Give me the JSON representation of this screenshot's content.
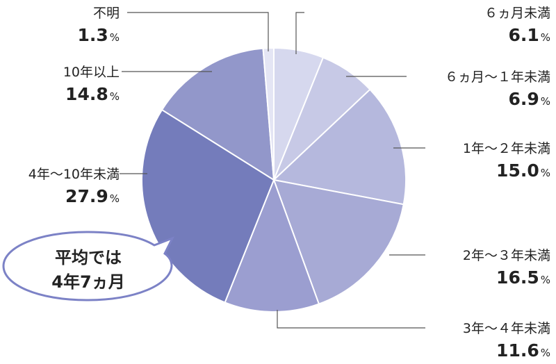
{
  "chart_data": {
    "type": "pie",
    "categories": [
      "６ヵ月未満",
      "６ヵ月～１年未満",
      "1年～２年未満",
      "2年～３年未満",
      "3年～４年未満",
      "4年～10年未満",
      "10年以上",
      "不明"
    ],
    "values": [
      6.1,
      6.9,
      15.0,
      16.5,
      11.6,
      27.9,
      14.8,
      1.3
    ],
    "value_labels": [
      "6.1",
      "6.9",
      "15.0",
      "16.5",
      "11.6",
      "27.9",
      "14.8",
      "1.3"
    ],
    "unit": "%",
    "start_angle_deg": 0,
    "direction": "clockwise",
    "colors": [
      "#d6d8ee",
      "#c7c9e6",
      "#b5b8dd",
      "#a7aad5",
      "#9b9ed0",
      "#747cbb",
      "#9297ca",
      "#e4e5f4"
    ],
    "annotation": [
      "平均では",
      "4年7ヵ月"
    ]
  }
}
